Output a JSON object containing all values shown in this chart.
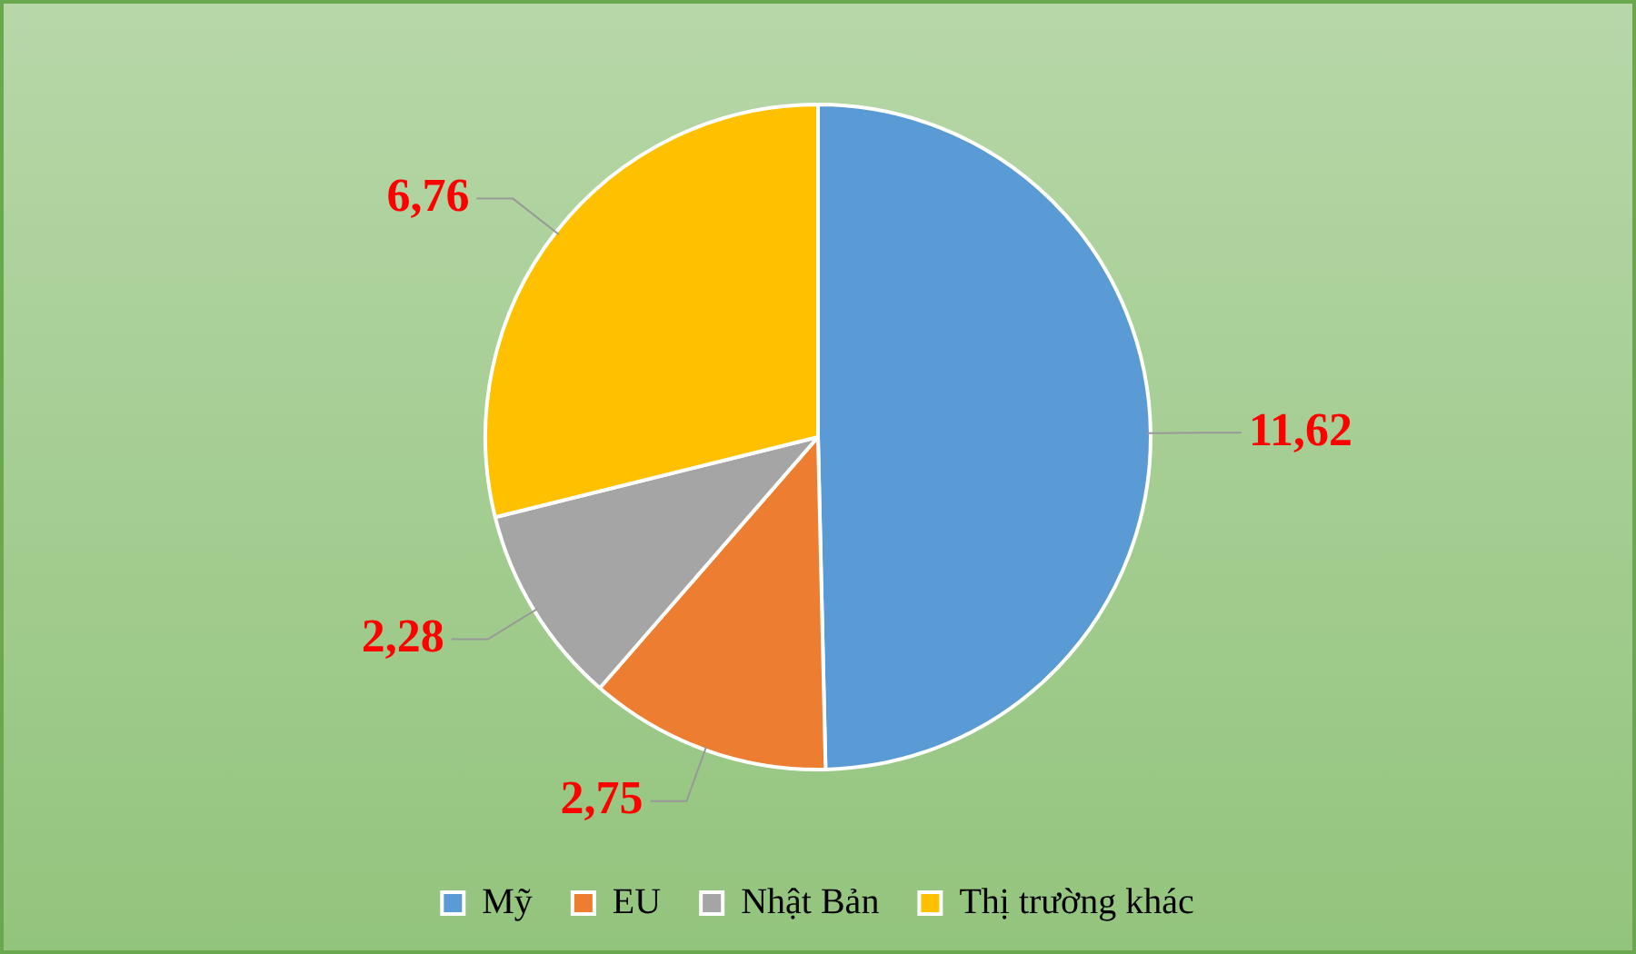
{
  "chart_data": {
    "type": "pie",
    "categories": [
      "Mỹ",
      "EU",
      "Nhật Bản",
      "Thị trường khác"
    ],
    "values": [
      11.62,
      2.75,
      2.28,
      6.76
    ],
    "value_labels": [
      "11,62",
      "2,75",
      "2,28",
      "6,76"
    ],
    "colors": [
      "#5b9bd5",
      "#ed7d31",
      "#a5a5a5",
      "#ffc000"
    ],
    "legend": "bottom"
  }
}
